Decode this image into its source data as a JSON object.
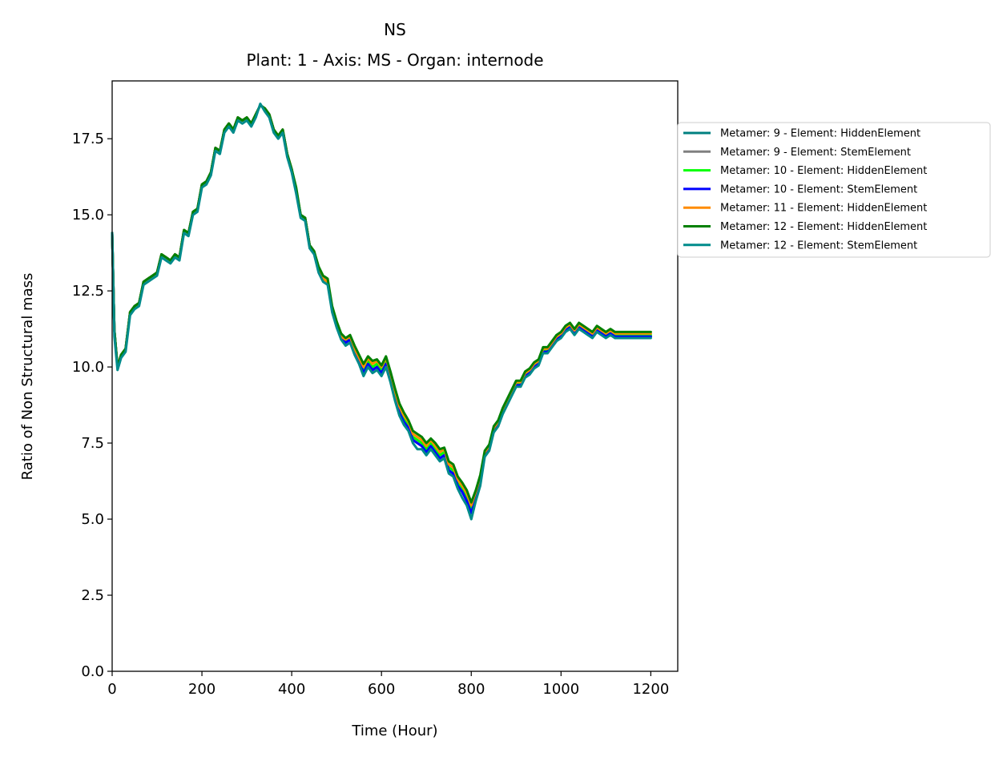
{
  "chart_data": {
    "type": "line",
    "title": "NS",
    "subtitle": "Plant: 1 - Axis: MS - Organ: internode",
    "xlabel": "Time (Hour)",
    "ylabel": "Ratio of Non Structural mass",
    "xlim": [
      0,
      1260
    ],
    "ylim": [
      0,
      19.4
    ],
    "x_ticks": [
      0,
      200,
      400,
      600,
      800,
      1000,
      1200
    ],
    "x_tick_labels": [
      "0",
      "200",
      "400",
      "600",
      "800",
      "1000",
      "1200"
    ],
    "y_ticks": [
      0,
      2.5,
      5,
      7.5,
      10,
      12.5,
      15,
      17.5
    ],
    "y_tick_labels": [
      "0.0",
      "2.5",
      "5.0",
      "7.5",
      "10.0",
      "12.5",
      "15.0",
      "17.5"
    ],
    "grid": false,
    "legend_position": "outside-right",
    "x": [
      0,
      5,
      12,
      20,
      30,
      40,
      50,
      60,
      70,
      80,
      90,
      100,
      110,
      120,
      130,
      140,
      150,
      160,
      170,
      180,
      190,
      200,
      210,
      220,
      230,
      240,
      250,
      260,
      270,
      280,
      290,
      300,
      310,
      320,
      330,
      340,
      350,
      360,
      370,
      380,
      390,
      400,
      410,
      420,
      430,
      440,
      450,
      460,
      470,
      480,
      490,
      500,
      510,
      520,
      530,
      540,
      550,
      560,
      570,
      580,
      590,
      600,
      610,
      620,
      630,
      640,
      650,
      660,
      670,
      680,
      690,
      700,
      710,
      720,
      730,
      740,
      750,
      760,
      770,
      780,
      790,
      800,
      810,
      820,
      830,
      840,
      850,
      860,
      870,
      880,
      890,
      900,
      910,
      920,
      930,
      940,
      950,
      960,
      970,
      980,
      990,
      1000,
      1010,
      1020,
      1030,
      1040,
      1050,
      1060,
      1070,
      1080,
      1090,
      1100,
      1110,
      1120,
      1130,
      1140,
      1150,
      1160,
      1170,
      1180,
      1190,
      1200
    ],
    "series": [
      {
        "name": "Metamer: 9 - Element: HiddenElement",
        "color": "#008080",
        "values": [
          14.4,
          11.2,
          10.0,
          10.4,
          10.6,
          11.8,
          12.0,
          12.1,
          12.8,
          12.9,
          13.0,
          13.1,
          13.7,
          13.6,
          13.5,
          13.7,
          13.6,
          14.5,
          14.4,
          15.1,
          15.2,
          16.0,
          16.1,
          16.4,
          17.2,
          17.1,
          17.8,
          18.0,
          17.8,
          18.2,
          18.1,
          18.2,
          18.0,
          18.3,
          18.6,
          18.5,
          18.3,
          17.8,
          17.6,
          17.8,
          17.0,
          16.5,
          15.8,
          15.0,
          14.9,
          14.0,
          13.8,
          13.2,
          12.9,
          12.8,
          11.9,
          11.4,
          11.0,
          10.8,
          10.9,
          10.5,
          10.2,
          9.8,
          10.1,
          9.9,
          10.0,
          9.8,
          10.1,
          9.6,
          9.0,
          8.5,
          8.2,
          8.0,
          7.6,
          7.5,
          7.4,
          7.2,
          7.4,
          7.2,
          7.0,
          7.1,
          6.6,
          6.5,
          6.1,
          5.9,
          5.6,
          5.2,
          5.7,
          6.2,
          7.1,
          7.3,
          7.9,
          8.1,
          8.5,
          8.8,
          9.1,
          9.4,
          9.4,
          9.7,
          9.8,
          10.0,
          10.1,
          10.5,
          10.5,
          10.7,
          10.9,
          11.0,
          11.2,
          11.3,
          11.1,
          11.3,
          11.2,
          11.1,
          11.0,
          11.2,
          11.1,
          11.0,
          11.1,
          11.0,
          11.0,
          11.0,
          11.0,
          11.0,
          11.0,
          11.0,
          11.0,
          11.0
        ]
      },
      {
        "name": "Metamer: 9 - Element: StemElement",
        "color": "#808080",
        "values": [
          14.4,
          11.2,
          10.0,
          10.4,
          10.6,
          11.8,
          12.0,
          12.1,
          12.8,
          12.9,
          13.0,
          13.1,
          13.7,
          13.6,
          13.5,
          13.7,
          13.6,
          14.5,
          14.4,
          15.1,
          15.2,
          16.0,
          16.1,
          16.4,
          17.2,
          17.1,
          17.8,
          18.0,
          17.8,
          18.2,
          18.1,
          18.2,
          18.0,
          18.3,
          18.6,
          18.5,
          18.3,
          17.8,
          17.6,
          17.8,
          17.0,
          16.5,
          15.8,
          15.0,
          14.9,
          14.0,
          13.8,
          13.2,
          12.9,
          12.8,
          11.9,
          11.4,
          11.0,
          10.8,
          10.9,
          10.5,
          10.2,
          9.8,
          10.1,
          9.9,
          10.0,
          9.8,
          10.1,
          9.6,
          9.0,
          8.5,
          8.2,
          8.0,
          7.6,
          7.5,
          7.4,
          7.2,
          7.4,
          7.2,
          7.0,
          7.1,
          6.6,
          6.5,
          6.1,
          5.9,
          5.6,
          5.2,
          5.7,
          6.2,
          7.1,
          7.3,
          7.9,
          8.1,
          8.5,
          8.8,
          9.1,
          9.4,
          9.4,
          9.7,
          9.8,
          10.0,
          10.1,
          10.5,
          10.5,
          10.7,
          10.9,
          11.0,
          11.2,
          11.3,
          11.1,
          11.3,
          11.2,
          11.1,
          11.0,
          11.2,
          11.1,
          11.0,
          11.1,
          11.0,
          11.0,
          11.0,
          11.0,
          11.0,
          11.0,
          11.0,
          11.0,
          11.0
        ]
      },
      {
        "name": "Metamer: 10 - Element: HiddenElement",
        "color": "#00ff00",
        "values": [
          14.4,
          11.2,
          10.0,
          10.4,
          10.6,
          11.8,
          12.0,
          12.1,
          12.8,
          12.9,
          13.0,
          13.1,
          13.7,
          13.6,
          13.5,
          13.7,
          13.6,
          14.5,
          14.4,
          15.1,
          15.2,
          16.0,
          16.1,
          16.4,
          17.2,
          17.1,
          17.8,
          18.0,
          17.8,
          18.2,
          18.1,
          18.2,
          18.0,
          18.3,
          18.6,
          18.5,
          18.3,
          17.8,
          17.6,
          17.8,
          17.0,
          16.5,
          15.8,
          15.0,
          14.9,
          14.0,
          13.8,
          13.2,
          12.9,
          12.8,
          11.9,
          11.4,
          11.0,
          10.85,
          10.95,
          10.55,
          10.25,
          9.9,
          10.2,
          10.0,
          10.1,
          9.9,
          10.2,
          9.7,
          9.1,
          8.6,
          8.3,
          8.1,
          7.7,
          7.6,
          7.5,
          7.3,
          7.5,
          7.3,
          7.1,
          7.2,
          6.7,
          6.6,
          6.2,
          6.0,
          5.75,
          5.35,
          5.8,
          6.3,
          7.15,
          7.35,
          7.95,
          8.15,
          8.55,
          8.85,
          9.15,
          9.45,
          9.45,
          9.75,
          9.85,
          10.05,
          10.15,
          10.55,
          10.55,
          10.75,
          10.95,
          11.05,
          11.25,
          11.35,
          11.15,
          11.35,
          11.25,
          11.15,
          11.05,
          11.25,
          11.15,
          11.05,
          11.15,
          11.05,
          11.05,
          11.05,
          11.05,
          11.05,
          11.05,
          11.05,
          11.05,
          11.05
        ]
      },
      {
        "name": "Metamer: 10 - Element: StemElement",
        "color": "#0000ff",
        "values": [
          14.4,
          11.2,
          10.0,
          10.4,
          10.6,
          11.8,
          12.0,
          12.1,
          12.8,
          12.9,
          13.0,
          13.1,
          13.7,
          13.6,
          13.5,
          13.7,
          13.6,
          14.5,
          14.4,
          15.1,
          15.2,
          16.0,
          16.1,
          16.4,
          17.2,
          17.1,
          17.8,
          18.0,
          17.8,
          18.2,
          18.1,
          18.2,
          18.0,
          18.3,
          18.6,
          18.5,
          18.3,
          17.8,
          17.6,
          17.8,
          17.0,
          16.5,
          15.8,
          15.0,
          14.9,
          14.0,
          13.8,
          13.2,
          12.9,
          12.8,
          11.9,
          11.4,
          11.0,
          10.8,
          10.9,
          10.5,
          10.2,
          9.8,
          10.1,
          9.9,
          10.0,
          9.8,
          10.1,
          9.6,
          9.0,
          8.5,
          8.2,
          8.0,
          7.6,
          7.5,
          7.4,
          7.2,
          7.4,
          7.2,
          7.0,
          7.1,
          6.6,
          6.5,
          6.1,
          5.9,
          5.6,
          5.2,
          5.7,
          6.2,
          7.1,
          7.3,
          7.9,
          8.1,
          8.5,
          8.8,
          9.1,
          9.4,
          9.4,
          9.7,
          9.8,
          10.0,
          10.1,
          10.5,
          10.5,
          10.7,
          10.9,
          11.0,
          11.2,
          11.3,
          11.1,
          11.3,
          11.2,
          11.1,
          11.0,
          11.2,
          11.1,
          11.0,
          11.1,
          11.0,
          11.0,
          11.0,
          11.0,
          11.0,
          11.0,
          11.0,
          11.0,
          11.0
        ]
      },
      {
        "name": "Metamer: 11 - Element: HiddenElement",
        "color": "#ff8c00",
        "values": [
          14.4,
          11.2,
          10.0,
          10.4,
          10.6,
          11.8,
          12.0,
          12.1,
          12.8,
          12.9,
          13.0,
          13.1,
          13.7,
          13.6,
          13.5,
          13.7,
          13.6,
          14.5,
          14.4,
          15.1,
          15.2,
          16.0,
          16.1,
          16.4,
          17.2,
          17.1,
          17.8,
          18.0,
          17.8,
          18.2,
          18.1,
          18.2,
          18.0,
          18.3,
          18.6,
          18.5,
          18.3,
          17.8,
          17.6,
          17.8,
          17.0,
          16.5,
          15.8,
          15.0,
          14.9,
          14.0,
          13.8,
          13.2,
          12.9,
          12.8,
          11.9,
          11.4,
          11.0,
          10.9,
          11.0,
          10.6,
          10.3,
          10.0,
          10.3,
          10.1,
          10.2,
          10.0,
          10.3,
          9.8,
          9.2,
          8.7,
          8.4,
          8.2,
          7.8,
          7.7,
          7.6,
          7.4,
          7.6,
          7.4,
          7.2,
          7.3,
          6.8,
          6.7,
          6.3,
          6.1,
          5.85,
          5.45,
          5.9,
          6.4,
          7.2,
          7.4,
          8.0,
          8.2,
          8.6,
          8.9,
          9.2,
          9.5,
          9.5,
          9.8,
          9.9,
          10.1,
          10.2,
          10.6,
          10.6,
          10.8,
          11.0,
          11.1,
          11.3,
          11.4,
          11.2,
          11.4,
          11.3,
          11.2,
          11.1,
          11.3,
          11.2,
          11.1,
          11.2,
          11.1,
          11.1,
          11.1,
          11.1,
          11.1,
          11.1,
          11.1,
          11.1,
          11.1
        ]
      },
      {
        "name": "Metamer: 12 - Element: HiddenElement",
        "color": "#008000",
        "values": [
          14.4,
          11.2,
          10.0,
          10.4,
          10.6,
          11.8,
          12.0,
          12.1,
          12.8,
          12.9,
          13.0,
          13.1,
          13.7,
          13.6,
          13.5,
          13.7,
          13.6,
          14.5,
          14.4,
          15.1,
          15.2,
          16.0,
          16.1,
          16.4,
          17.2,
          17.1,
          17.8,
          18.0,
          17.8,
          18.2,
          18.1,
          18.2,
          18.0,
          18.3,
          18.6,
          18.5,
          18.3,
          17.8,
          17.6,
          17.8,
          17.0,
          16.5,
          15.9,
          15.0,
          14.9,
          14.0,
          13.8,
          13.3,
          13.0,
          12.9,
          12.0,
          11.5,
          11.1,
          10.95,
          11.05,
          10.7,
          10.4,
          10.1,
          10.35,
          10.2,
          10.25,
          10.05,
          10.35,
          9.85,
          9.3,
          8.8,
          8.5,
          8.25,
          7.9,
          7.8,
          7.7,
          7.5,
          7.65,
          7.5,
          7.3,
          7.35,
          6.9,
          6.8,
          6.4,
          6.2,
          5.95,
          5.55,
          5.95,
          6.45,
          7.25,
          7.45,
          8.05,
          8.25,
          8.65,
          8.95,
          9.25,
          9.55,
          9.55,
          9.85,
          9.95,
          10.15,
          10.25,
          10.65,
          10.65,
          10.85,
          11.05,
          11.15,
          11.35,
          11.45,
          11.25,
          11.45,
          11.35,
          11.25,
          11.15,
          11.35,
          11.25,
          11.15,
          11.25,
          11.15,
          11.15,
          11.15,
          11.15,
          11.15,
          11.15,
          11.15,
          11.15,
          11.15
        ]
      },
      {
        "name": "Metamer: 12 - Element: StemElement",
        "color": "#008b8b",
        "values": [
          14.4,
          11.0,
          9.9,
          10.3,
          10.5,
          11.7,
          11.9,
          12.0,
          12.7,
          12.8,
          12.9,
          13.0,
          13.6,
          13.5,
          13.4,
          13.6,
          13.5,
          14.4,
          14.3,
          15.0,
          15.1,
          15.9,
          16.0,
          16.3,
          17.1,
          17.0,
          17.7,
          17.9,
          17.7,
          18.1,
          18.0,
          18.1,
          17.9,
          18.2,
          18.65,
          18.4,
          18.2,
          17.7,
          17.5,
          17.7,
          16.9,
          16.4,
          15.7,
          14.9,
          14.8,
          13.9,
          13.7,
          13.1,
          12.8,
          12.7,
          11.8,
          11.3,
          10.9,
          10.7,
          10.8,
          10.4,
          10.1,
          9.7,
          10.0,
          9.8,
          9.9,
          9.7,
          10.0,
          9.5,
          8.9,
          8.4,
          8.1,
          7.9,
          7.5,
          7.3,
          7.3,
          7.1,
          7.3,
          7.1,
          6.9,
          7.0,
          6.5,
          6.4,
          6.0,
          5.7,
          5.45,
          5.0,
          5.6,
          6.1,
          7.05,
          7.25,
          7.85,
          8.05,
          8.45,
          8.75,
          9.05,
          9.35,
          9.35,
          9.65,
          9.75,
          9.95,
          10.05,
          10.45,
          10.45,
          10.65,
          10.85,
          10.95,
          11.15,
          11.25,
          11.05,
          11.25,
          11.15,
          11.05,
          10.95,
          11.15,
          11.05,
          10.95,
          11.05,
          10.95,
          10.95,
          10.95,
          10.95,
          10.95,
          10.95,
          10.95,
          10.95,
          10.95
        ]
      }
    ]
  }
}
